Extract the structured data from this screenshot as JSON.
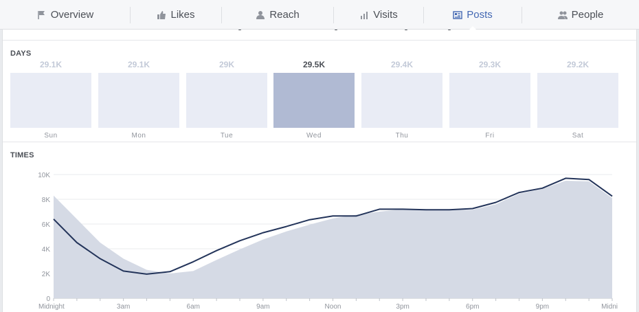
{
  "tabs": [
    {
      "label": "Overview",
      "icon": "flag-icon",
      "active": false
    },
    {
      "label": "Likes",
      "icon": "thumbs-up-icon",
      "active": false
    },
    {
      "label": "Reach",
      "icon": "people-reach-icon",
      "active": false
    },
    {
      "label": "Visits",
      "icon": "bar-chart-icon",
      "active": false
    },
    {
      "label": "Posts",
      "icon": "posts-list-icon",
      "active": true
    },
    {
      "label": "People",
      "icon": "people-icon",
      "active": false
    }
  ],
  "days_section": {
    "title": "DAYS",
    "selected": "Wed",
    "days": [
      {
        "name": "Sun",
        "value": "29.1K"
      },
      {
        "name": "Mon",
        "value": "29.1K"
      },
      {
        "name": "Tue",
        "value": "29K"
      },
      {
        "name": "Wed",
        "value": "29.5K"
      },
      {
        "name": "Thu",
        "value": "29.4K"
      },
      {
        "name": "Fri",
        "value": "29.3K"
      },
      {
        "name": "Sat",
        "value": "29.2K"
      }
    ]
  },
  "times_section": {
    "title": "TIMES"
  },
  "chart_data": {
    "type": "area",
    "x_tick_labels": [
      "Midnight",
      "3am",
      "6am",
      "9am",
      "Noon",
      "3pm",
      "6pm",
      "9pm",
      "Midni"
    ],
    "y_tick_labels": [
      "0",
      "2K",
      "4K",
      "6K",
      "8K",
      "10K"
    ],
    "ylim": [
      0,
      10000
    ],
    "x_hours": [
      0,
      1,
      2,
      3,
      4,
      5,
      6,
      7,
      8,
      9,
      10,
      11,
      12,
      13,
      14,
      15,
      16,
      17,
      18,
      19,
      20,
      21,
      22,
      23,
      24
    ],
    "series": [
      {
        "role": "selected-day-line",
        "color": "#23345a",
        "values": [
          6400,
          4500,
          3200,
          2200,
          1950,
          2150,
          2950,
          3850,
          4650,
          5300,
          5800,
          6350,
          6650,
          6650,
          7200,
          7200,
          7150,
          7150,
          7250,
          7750,
          8550,
          8900,
          9700,
          9600,
          8250
        ]
      },
      {
        "role": "average-area",
        "color": "#d5dae5",
        "values": [
          8300,
          6400,
          4500,
          3200,
          2300,
          2000,
          2200,
          3100,
          3950,
          4750,
          5400,
          5950,
          6450,
          6750,
          7000,
          7200,
          7200,
          7150,
          7150,
          7600,
          8450,
          8850,
          9500,
          9450,
          8100
        ]
      }
    ],
    "grid": true
  }
}
